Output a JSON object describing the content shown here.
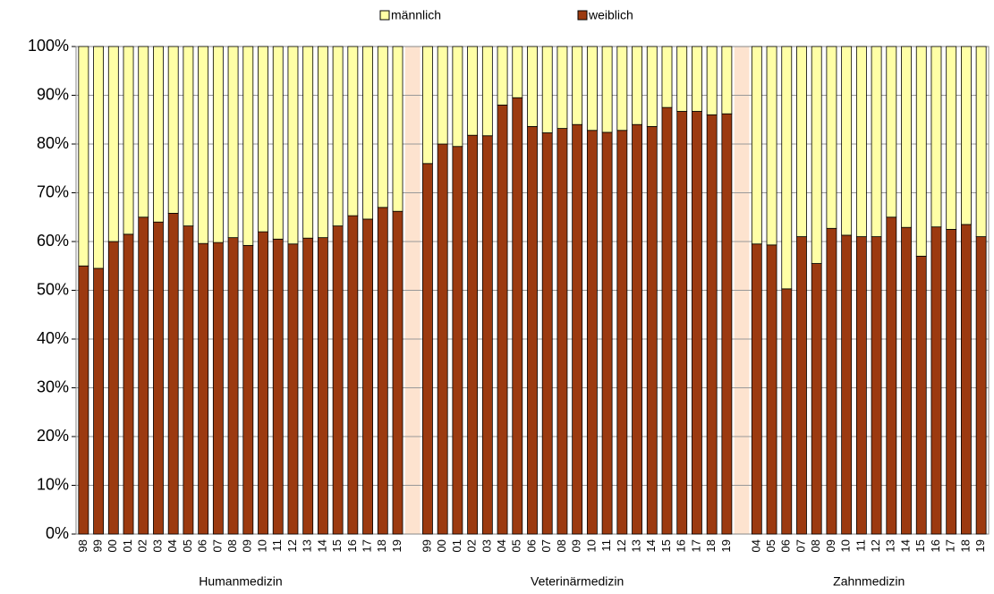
{
  "chart_data": {
    "type": "bar",
    "stacked": true,
    "groups": [
      {
        "label": "Humanmedizin",
        "categories": [
          "98",
          "99",
          "00",
          "01",
          "02",
          "03",
          "04",
          "05",
          "06",
          "07",
          "08",
          "09",
          "10",
          "11",
          "12",
          "13",
          "14",
          "15",
          "16",
          "17",
          "18",
          "19"
        ]
      },
      {
        "label": "Veterinärmedizin",
        "categories": [
          "99",
          "00",
          "01",
          "02",
          "03",
          "04",
          "05",
          "06",
          "07",
          "08",
          "09",
          "10",
          "11",
          "12",
          "13",
          "14",
          "15",
          "16",
          "17",
          "18",
          "19"
        ]
      },
      {
        "label": "Zahnmedizin",
        "categories": [
          "04",
          "05",
          "06",
          "07",
          "08",
          "09",
          "10",
          "11",
          "12",
          "13",
          "14",
          "15",
          "16",
          "17",
          "18",
          "19"
        ]
      }
    ],
    "series": [
      {
        "name": "männlich",
        "color": "#ffffa6",
        "values": [
          45,
          45.5,
          40,
          38.5,
          35,
          36,
          34.2,
          36.8,
          40.4,
          40.2,
          39.2,
          40.8,
          38,
          39.5,
          40.5,
          39.3,
          39.2,
          36.8,
          34.7,
          35.4,
          33,
          33.8,
          24,
          20,
          20.5,
          18.2,
          18.3,
          12,
          10.5,
          16.4,
          17.7,
          16.8,
          16,
          17.2,
          17.6,
          17.2,
          16,
          16.4,
          12.5,
          13.3,
          13.3,
          14,
          13.8,
          40.5,
          40.7,
          49.7,
          39,
          44.5,
          37.3,
          38.7,
          39,
          39,
          35,
          37.1,
          43,
          37,
          37.5,
          36.5,
          39
        ]
      },
      {
        "name": "weiblich",
        "color": "#9c3a10",
        "values": [
          55,
          54.5,
          60,
          61.5,
          65,
          64,
          65.8,
          63.2,
          59.6,
          59.8,
          60.8,
          59.2,
          62,
          60.5,
          59.5,
          60.7,
          60.8,
          63.2,
          65.3,
          64.6,
          67,
          66.2,
          76,
          80,
          79.5,
          81.8,
          81.7,
          88,
          89.5,
          83.6,
          82.3,
          83.2,
          84,
          82.8,
          82.4,
          82.8,
          84,
          83.6,
          87.5,
          86.7,
          86.7,
          86,
          86.2,
          59.5,
          59.3,
          50.3,
          61,
          55.5,
          62.7,
          61.3,
          61,
          61,
          65,
          62.9,
          57,
          63,
          62.5,
          63.5,
          61
        ]
      }
    ],
    "ylim": [
      0,
      100
    ],
    "yticks": [
      {
        "value": 0,
        "label": "0%"
      },
      {
        "value": 10,
        "label": "10%"
      },
      {
        "value": 20,
        "label": "20%"
      },
      {
        "value": 30,
        "label": "30%"
      },
      {
        "value": 40,
        "label": "40%"
      },
      {
        "value": 50,
        "label": "50%"
      },
      {
        "value": 60,
        "label": "60%"
      },
      {
        "value": 70,
        "label": "70%"
      },
      {
        "value": 80,
        "label": "80%"
      },
      {
        "value": 90,
        "label": "90%"
      },
      {
        "value": 100,
        "label": "100%"
      }
    ],
    "grid": true,
    "legend": "top"
  }
}
